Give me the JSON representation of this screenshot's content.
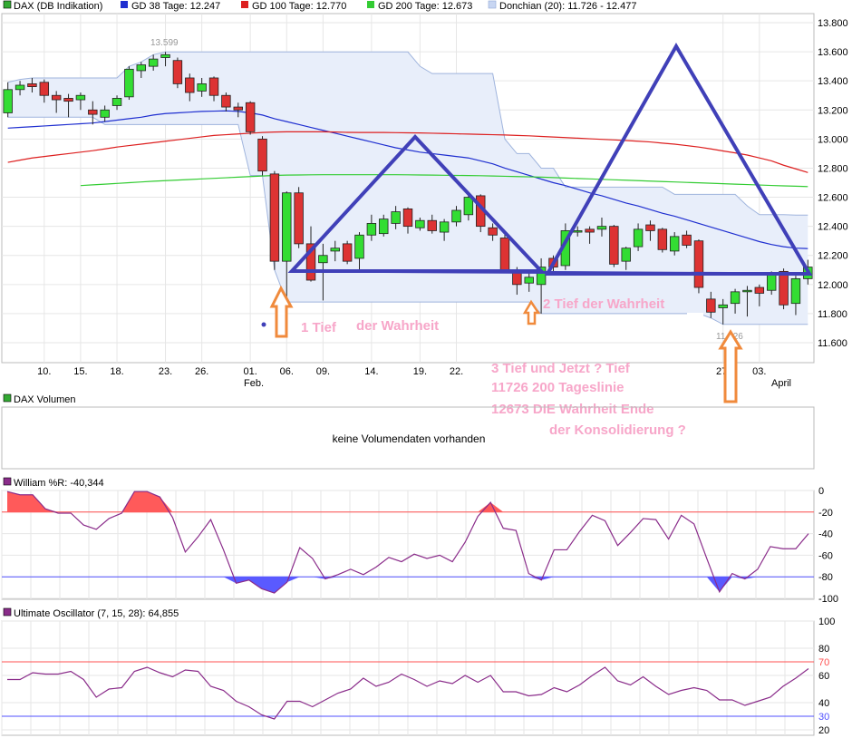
{
  "colors": {
    "up": "#33dd33",
    "down": "#dd3333",
    "gd38": "#1f2fd0",
    "gd100": "#dd1f1f",
    "gd200": "#33cc33",
    "donchian_fill": "#e8eefa",
    "donchian_line": "#9fb4dd",
    "triangle": "#4040b8",
    "arrow": "#f08a3c",
    "annot": "#f7a6c9",
    "williams": "#8a2c8a",
    "uo": "#8a2c8a",
    "upper_band": "#ff5050",
    "lower_band": "#5050ff"
  },
  "main": {
    "legend": [
      {
        "label": "DAX (DB Indikation)",
        "color": "#33aa33"
      },
      {
        "label": "GD 38 Tage: 12.247",
        "color": "#1f2fd0"
      },
      {
        "label": "GD 100 Tage: 12.770",
        "color": "#dd1f1f"
      },
      {
        "label": "GD 200 Tage: 12.673",
        "color": "#33cc33"
      },
      {
        "label": "Donchian (20): 11.726 - 12.477",
        "color": "#a9bde6"
      }
    ],
    "max_label": "13.599",
    "min_label": "11.726",
    "x_ticks": [
      "10.",
      "15.",
      "18.",
      "23.",
      "26.",
      "01.",
      "06.",
      "09.",
      "14.",
      "19.",
      "22.",
      "27.",
      "03."
    ],
    "x_sub_labels": [
      "Feb.",
      "April"
    ]
  },
  "annotations": {
    "tief1_a": "1 Tief",
    "tief1_b": "der Wahrheit",
    "tief2": "2 Tief der Wahrheit",
    "tief3_line1": "3 Tief und Jetzt ? Tief",
    "tief3_line2": "11726 200 Tageslinie",
    "tief3_line3": "12673 DIE Wahrheit Ende",
    "tief3_line4": "der Konsolidierung ?"
  },
  "volume": {
    "legend": "DAX Volumen",
    "message": "keine Volumendaten vorhanden"
  },
  "williams": {
    "legend": "William %R: -40,344",
    "ticks": [
      "0",
      "-20",
      "-40",
      "-60",
      "-80",
      "-100"
    ]
  },
  "uo": {
    "legend": "Ultimate Oscillator (7, 15, 28): 64,855",
    "ticks": [
      "100",
      "80",
      "60",
      "40",
      "20"
    ],
    "band_labels": [
      "70",
      "30"
    ]
  },
  "chart_data": [
    {
      "type": "candlestick",
      "title": "DAX (DB Indikation)",
      "ylim": [
        11500,
        13850
      ],
      "y_ticks": [
        11600,
        11800,
        12000,
        12200,
        12400,
        12600,
        12800,
        13000,
        13200,
        13400,
        13600,
        13800
      ],
      "y_tick_labels": [
        "11.600",
        "11.800",
        "12.000",
        "12.200",
        "12.400",
        "12.600",
        "12.800",
        "13.000",
        "13.200",
        "13.400",
        "13.600",
        "13.800"
      ],
      "ohlc": [
        [
          13180,
          13390,
          13150,
          13340
        ],
        [
          13340,
          13400,
          13300,
          13370
        ],
        [
          13380,
          13420,
          13320,
          13360
        ],
        [
          13390,
          13410,
          13250,
          13300
        ],
        [
          13300,
          13330,
          13180,
          13270
        ],
        [
          13280,
          13310,
          13150,
          13260
        ],
        [
          13270,
          13320,
          13200,
          13300
        ],
        [
          13200,
          13260,
          13100,
          13170
        ],
        [
          13150,
          13230,
          13120,
          13200
        ],
        [
          13230,
          13300,
          13200,
          13280
        ],
        [
          13290,
          13500,
          13270,
          13480
        ],
        [
          13470,
          13530,
          13420,
          13510
        ],
        [
          13500,
          13580,
          13470,
          13550
        ],
        [
          13560,
          13599,
          13500,
          13580
        ],
        [
          13540,
          13560,
          13350,
          13380
        ],
        [
          13420,
          13450,
          13260,
          13320
        ],
        [
          13330,
          13420,
          13290,
          13380
        ],
        [
          13420,
          13430,
          13260,
          13300
        ],
        [
          13300,
          13320,
          13190,
          13220
        ],
        [
          13220,
          13250,
          13150,
          13200
        ],
        [
          13250,
          13260,
          13030,
          13050
        ],
        [
          13000,
          13020,
          12750,
          12780
        ],
        [
          12760,
          12780,
          12100,
          12160
        ],
        [
          12160,
          12640,
          11880,
          12630
        ],
        [
          12630,
          12670,
          12250,
          12280
        ],
        [
          12280,
          12400,
          12020,
          12030
        ],
        [
          12150,
          12280,
          11890,
          12200
        ],
        [
          12230,
          12300,
          12160,
          12250
        ],
        [
          12280,
          12300,
          12140,
          12160
        ],
        [
          12180,
          12360,
          12100,
          12340
        ],
        [
          12340,
          12480,
          12300,
          12420
        ],
        [
          12350,
          12480,
          12330,
          12450
        ],
        [
          12420,
          12540,
          12380,
          12500
        ],
        [
          12520,
          12530,
          12350,
          12400
        ],
        [
          12390,
          12460,
          12370,
          12440
        ],
        [
          12440,
          12480,
          12350,
          12370
        ],
        [
          12360,
          12450,
          12300,
          12430
        ],
        [
          12430,
          12540,
          12400,
          12510
        ],
        [
          12480,
          12620,
          12440,
          12600
        ],
        [
          12610,
          12620,
          12360,
          12400
        ],
        [
          12390,
          12420,
          12300,
          12340
        ],
        [
          12320,
          12370,
          12090,
          12100
        ],
        [
          12090,
          12120,
          11930,
          12000
        ],
        [
          12010,
          12080,
          11950,
          12050
        ],
        [
          12000,
          12180,
          11800,
          12120
        ],
        [
          12180,
          12200,
          12090,
          12120
        ],
        [
          12130,
          12420,
          12100,
          12370
        ],
        [
          12360,
          12400,
          12330,
          12370
        ],
        [
          12380,
          12400,
          12280,
          12360
        ],
        [
          12380,
          12460,
          12330,
          12400
        ],
        [
          12400,
          12410,
          12120,
          12140
        ],
        [
          12160,
          12260,
          12100,
          12250
        ],
        [
          12260,
          12420,
          12230,
          12380
        ],
        [
          12410,
          12440,
          12300,
          12370
        ],
        [
          12380,
          12390,
          12220,
          12240
        ],
        [
          12230,
          12360,
          12200,
          12330
        ],
        [
          12340,
          12370,
          12250,
          12270
        ],
        [
          12300,
          12310,
          11940,
          11980
        ],
        [
          11900,
          11950,
          11770,
          11810
        ],
        [
          11840,
          11900,
          11726,
          11860
        ],
        [
          11870,
          11970,
          11800,
          11950
        ],
        [
          11950,
          11990,
          11780,
          11960
        ],
        [
          11980,
          12000,
          11850,
          11940
        ],
        [
          11960,
          12090,
          11930,
          12080
        ],
        [
          12090,
          12110,
          11830,
          11860
        ],
        [
          11870,
          12060,
          11790,
          12040
        ],
        [
          12040,
          12170,
          12000,
          12120
        ]
      ],
      "series": [
        {
          "name": "GD 38 Tage: 12.247",
          "values": [
            13075,
            13080,
            13085,
            13090,
            13095,
            13100,
            13105,
            13110,
            13120,
            13130,
            13140,
            13150,
            13165,
            13175,
            13180,
            13185,
            13190,
            13192,
            13194,
            13190,
            13180,
            13165,
            13140,
            13120,
            13100,
            13080,
            13060,
            13040,
            13020,
            13000,
            12980,
            12960,
            12940,
            12925,
            12910,
            12900,
            12890,
            12880,
            12870,
            12850,
            12830,
            12800,
            12775,
            12750,
            12725,
            12700,
            12680,
            12655,
            12630,
            12610,
            12585,
            12560,
            12540,
            12515,
            12490,
            12470,
            12445,
            12420,
            12395,
            12370,
            12345,
            12320,
            12295,
            12275,
            12260,
            12250,
            12247
          ]
        },
        {
          "name": "GD 100 Tage: 12.770",
          "values": [
            12840,
            12855,
            12870,
            12880,
            12890,
            12900,
            12910,
            12920,
            12932,
            12945,
            12955,
            12965,
            12975,
            12985,
            12995,
            13005,
            13015,
            13025,
            13030,
            13035,
            13040,
            13045,
            13048,
            13050,
            13050,
            13050,
            13050,
            13048,
            13046,
            13045,
            13045,
            13045,
            13044,
            13043,
            13042,
            13040,
            13038,
            13036,
            13034,
            13032,
            13030,
            13028,
            13025,
            13022,
            13018,
            13014,
            13010,
            13006,
            13002,
            12998,
            12994,
            12990,
            12985,
            12980,
            12972,
            12965,
            12955,
            12945,
            12932,
            12918,
            12905,
            12890,
            12870,
            12850,
            12820,
            12795,
            12770
          ]
        },
        {
          "name": "GD 200 Tage: 12.673",
          "values": [
            null,
            null,
            null,
            null,
            null,
            null,
            12680,
            12685,
            12690,
            12695,
            12700,
            12705,
            12710,
            12714,
            12718,
            12722,
            12726,
            12730,
            12734,
            12738,
            12742,
            12746,
            12750,
            12752,
            12753,
            12754,
            12755,
            12755,
            12755,
            12755,
            12755,
            12755,
            12755,
            12754,
            12753,
            12752,
            12751,
            12750,
            12749,
            12748,
            12746,
            12744,
            12742,
            12740,
            12738,
            12735,
            12732,
            12729,
            12726,
            12723,
            12720,
            12717,
            12714,
            12711,
            12708,
            12705,
            12702,
            12699,
            12696,
            12693,
            12690,
            12687,
            12684,
            12681,
            12678,
            12676,
            12673
          ]
        },
        {
          "name": "Donchian upper",
          "values": [
            13390,
            13410,
            13420,
            13420,
            13420,
            13420,
            13420,
            13420,
            13420,
            13420,
            13500,
            13530,
            13580,
            13599,
            13599,
            13599,
            13599,
            13599,
            13599,
            13599,
            13599,
            13599,
            13599,
            13599,
            13599,
            13599,
            13599,
            13599,
            13599,
            13599,
            13599,
            13599,
            13599,
            13599,
            13500,
            13450,
            13450,
            13450,
            13450,
            13450,
            13450,
            13000,
            12900,
            12900,
            12800,
            12800,
            12670,
            12670,
            12670,
            12670,
            12670,
            12670,
            12670,
            12670,
            12670,
            12620,
            12620,
            12620,
            12620,
            12620,
            12620,
            12540,
            12480,
            12480,
            12480,
            12477,
            12477
          ]
        },
        {
          "name": "Donchian lower",
          "values": [
            13150,
            13150,
            13150,
            13150,
            13150,
            13150,
            13150,
            13150,
            13100,
            13100,
            13100,
            13100,
            13100,
            13100,
            13100,
            13100,
            13100,
            13100,
            13100,
            13100,
            12750,
            12750,
            12100,
            11880,
            11880,
            11880,
            11880,
            11880,
            11880,
            11880,
            11880,
            11880,
            11880,
            11880,
            11880,
            11880,
            11880,
            11880,
            11880,
            11880,
            11880,
            11880,
            11880,
            11880,
            11800,
            11800,
            11800,
            11800,
            11800,
            11800,
            11800,
            11800,
            11800,
            11800,
            11800,
            11800,
            11800,
            11800,
            11770,
            11726,
            11726,
            11726,
            11726,
            11726,
            11726,
            11726,
            11726
          ]
        }
      ]
    },
    {
      "type": "line",
      "title": "William %R: -40,344",
      "ylim": [
        -100,
        0
      ],
      "bands": [
        -20,
        -80
      ],
      "values": [
        -1,
        -4,
        -4,
        -17,
        -21,
        -21,
        -32,
        -36,
        -26,
        -21,
        -1,
        -1,
        -6,
        -25,
        -57,
        -43,
        -27,
        -55,
        -86,
        -83,
        -91,
        -95,
        -85,
        -53,
        -63,
        -82,
        -78,
        -73,
        -78,
        -71,
        -62,
        -66,
        -59,
        -63,
        -60,
        -66,
        -48,
        -24,
        -11,
        -35,
        -37,
        -77,
        -83,
        -55,
        -55,
        -38,
        -23,
        -28,
        -51,
        -39,
        -26,
        -27,
        -45,
        -23,
        -31,
        -63,
        -94,
        -77,
        -82,
        -73,
        -52,
        -54,
        -54,
        -40
      ]
    },
    {
      "type": "line",
      "title": "Ultimate Oscillator (7, 15, 28): 64,855",
      "ylim": [
        10,
        100
      ],
      "bands": [
        70,
        30
      ],
      "values": [
        57,
        57,
        62,
        61,
        61,
        63,
        57,
        44,
        50,
        51,
        63,
        66,
        62,
        59,
        64,
        63,
        52,
        49,
        41,
        37,
        31,
        28,
        41,
        41,
        37,
        42,
        47,
        50,
        58,
        52,
        55,
        61,
        57,
        52,
        56,
        54,
        60,
        55,
        60,
        48,
        48,
        45,
        46,
        51,
        48,
        53,
        60,
        66,
        56,
        53,
        59,
        52,
        46,
        49,
        51,
        49,
        42,
        42,
        38,
        41,
        44,
        52,
        58,
        65
      ]
    }
  ]
}
